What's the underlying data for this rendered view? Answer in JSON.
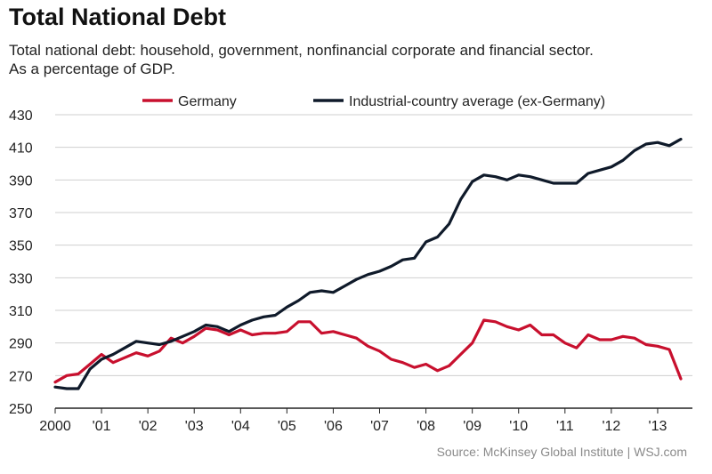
{
  "chart_data": {
    "type": "line",
    "title": "Total National Debt",
    "subtitle_lines": [
      "Total national debt: household, government, nonfinancial corporate and financial sector.",
      "As a percentage of GDP."
    ],
    "source": "Source: McKinsey Global Institute  |  WSJ.com",
    "ylim": [
      250,
      430
    ],
    "yticks": [
      250,
      270,
      290,
      310,
      330,
      350,
      370,
      390,
      410,
      430
    ],
    "xlim": [
      2000,
      2013.75
    ],
    "xticks": [
      {
        "value": 2000,
        "label": "2000"
      },
      {
        "value": 2001,
        "label": "'01"
      },
      {
        "value": 2002,
        "label": "'02"
      },
      {
        "value": 2003,
        "label": "'03"
      },
      {
        "value": 2004,
        "label": "'04"
      },
      {
        "value": 2005,
        "label": "'05"
      },
      {
        "value": 2006,
        "label": "'06"
      },
      {
        "value": 2007,
        "label": "'07"
      },
      {
        "value": 2008,
        "label": "'08"
      },
      {
        "value": 2009,
        "label": "'09"
      },
      {
        "value": 2010,
        "label": "'10"
      },
      {
        "value": 2011,
        "label": "'11"
      },
      {
        "value": 2012,
        "label": "'12"
      },
      {
        "value": 2013,
        "label": "'13"
      }
    ],
    "grid": true,
    "legend_position": "top",
    "x": [
      2000.0,
      2000.25,
      2000.5,
      2000.75,
      2001.0,
      2001.25,
      2001.5,
      2001.75,
      2002.0,
      2002.25,
      2002.5,
      2002.75,
      2003.0,
      2003.25,
      2003.5,
      2003.75,
      2004.0,
      2004.25,
      2004.5,
      2004.75,
      2005.0,
      2005.25,
      2005.5,
      2005.75,
      2006.0,
      2006.25,
      2006.5,
      2006.75,
      2007.0,
      2007.25,
      2007.5,
      2007.75,
      2008.0,
      2008.25,
      2008.5,
      2008.75,
      2009.0,
      2009.25,
      2009.5,
      2009.75,
      2010.0,
      2010.25,
      2010.5,
      2010.75,
      2011.0,
      2011.25,
      2011.5,
      2011.75,
      2012.0,
      2012.25,
      2012.5,
      2012.75,
      2013.0,
      2013.25,
      2013.5
    ],
    "series": [
      {
        "name": "Germany",
        "color": "#c8102e",
        "values": [
          266,
          270,
          271,
          277,
          283,
          278,
          281,
          284,
          282,
          285,
          293,
          290,
          294,
          299,
          298,
          295,
          298,
          295,
          296,
          296,
          297,
          303,
          303,
          296,
          297,
          295,
          293,
          288,
          285,
          280,
          278,
          275,
          277,
          273,
          276,
          283,
          290,
          304,
          303,
          300,
          298,
          301,
          295,
          295,
          290,
          287,
          295,
          292,
          292,
          294,
          293,
          289,
          288,
          286,
          268
        ]
      },
      {
        "name": "Industrial-country average (ex-Germany)",
        "color": "#0f1a2a",
        "values": [
          263,
          262,
          262,
          274,
          280,
          283,
          287,
          291,
          290,
          289,
          291,
          294,
          297,
          301,
          300,
          297,
          301,
          304,
          306,
          307,
          312,
          316,
          321,
          322,
          321,
          325,
          329,
          332,
          334,
          337,
          341,
          342,
          352,
          355,
          363,
          378,
          389,
          393,
          392,
          390,
          393,
          392,
          390,
          388,
          388,
          388,
          394,
          396,
          398,
          402,
          408,
          412,
          413,
          411,
          415
        ]
      }
    ]
  }
}
